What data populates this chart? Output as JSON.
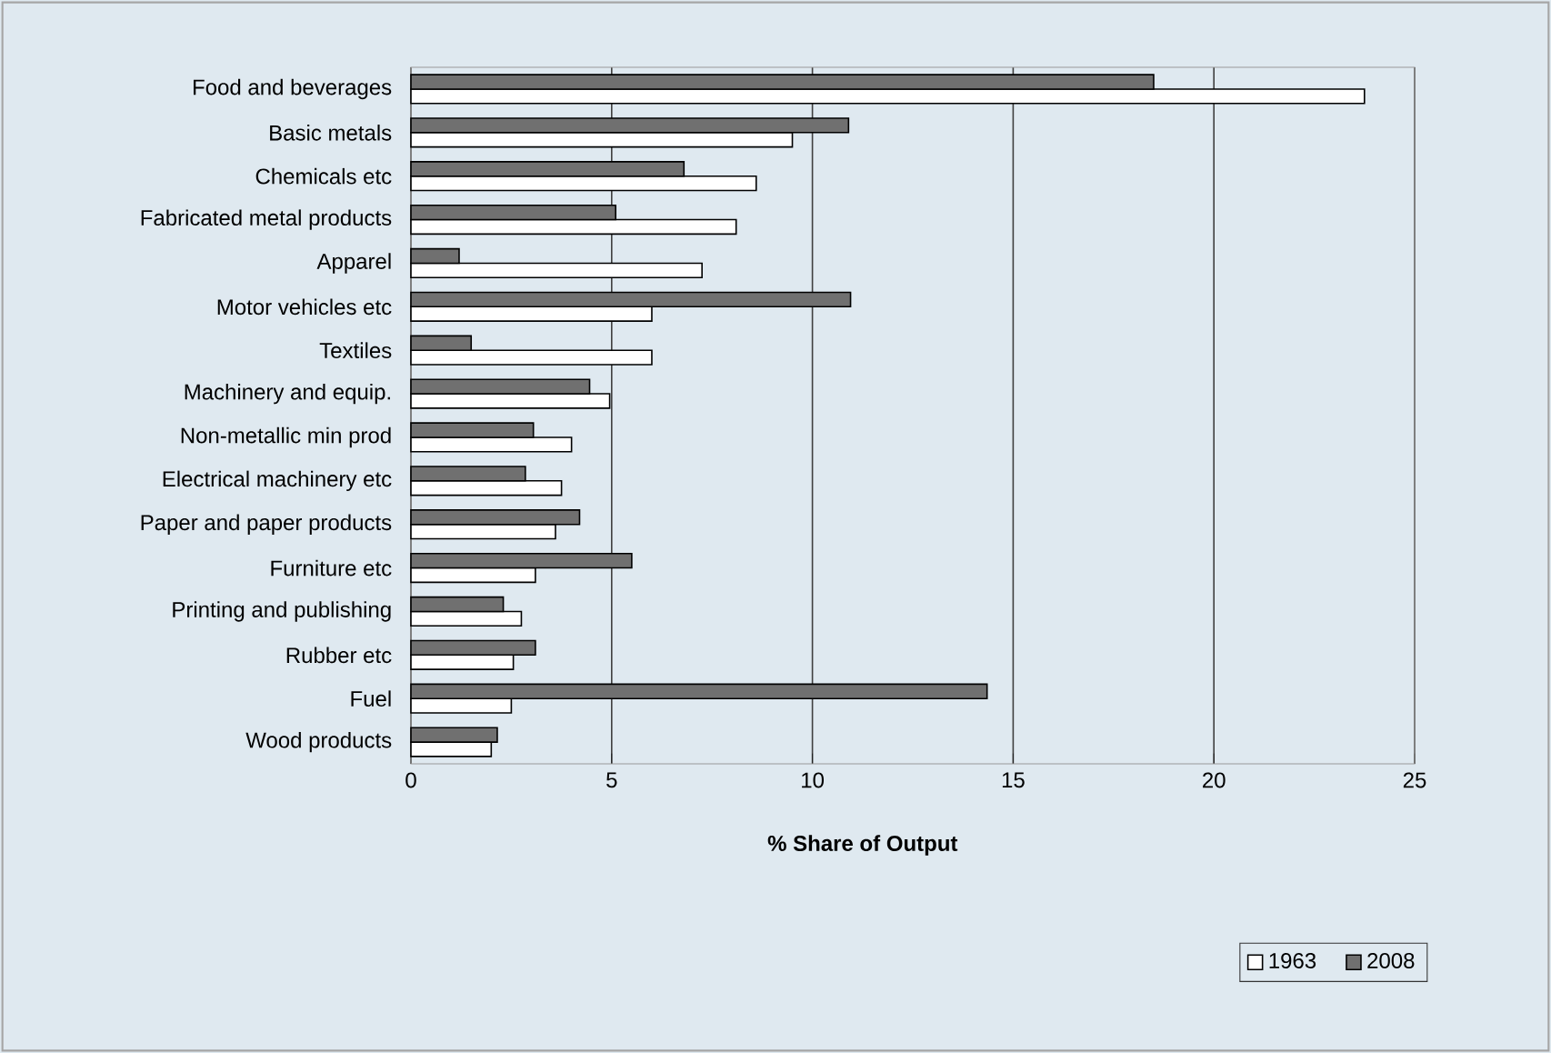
{
  "chart_data": {
    "type": "bar",
    "orientation": "horizontal",
    "xlabel": "% Share of Output",
    "categories": [
      "Food and beverages",
      "Basic metals",
      "Chemicals etc",
      "Fabricated metal products",
      "Apparel",
      "Motor vehicles etc",
      "Textiles",
      "Machinery and equip.",
      "Non-metallic min prod",
      "Electrical machinery etc",
      "Paper and paper products",
      "Furniture etc",
      "Printing and publishing",
      "Rubber etc",
      "Fuel",
      "Wood products"
    ],
    "series": [
      {
        "name": "1963",
        "color": "#ffffff",
        "values": [
          23.75,
          9.5,
          8.6,
          8.1,
          7.25,
          6.0,
          6.0,
          4.95,
          4.0,
          3.75,
          3.6,
          3.1,
          2.75,
          2.55,
          2.5,
          2.0
        ]
      },
      {
        "name": "2008",
        "color": "#707070",
        "values": [
          18.5,
          10.9,
          6.8,
          5.1,
          1.2,
          10.95,
          1.5,
          4.45,
          3.05,
          2.85,
          4.2,
          5.5,
          2.3,
          3.1,
          14.35,
          2.15
        ]
      }
    ],
    "xlim": [
      0,
      25
    ],
    "xticks": [
      0,
      5,
      10,
      15,
      20,
      25
    ],
    "grid": "x",
    "legend": "bottom right"
  }
}
